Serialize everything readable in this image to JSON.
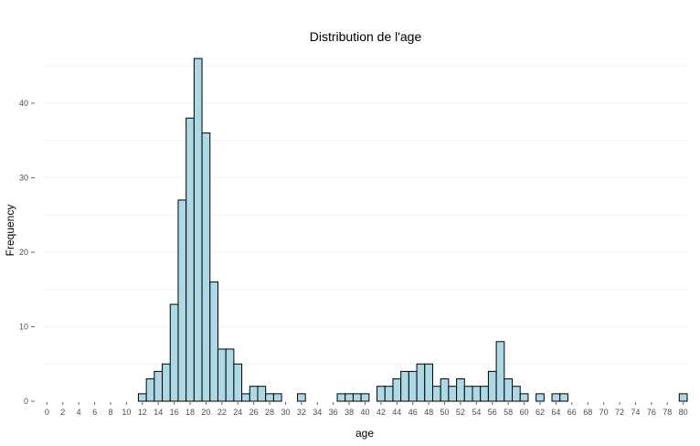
{
  "chart_data": {
    "type": "bar",
    "title": "Distribution de l'age",
    "xlabel": "age",
    "ylabel": "Frequency",
    "xlim": [
      0,
      80
    ],
    "ylim": [
      0,
      46
    ],
    "x_ticks": [
      0,
      2,
      4,
      6,
      8,
      10,
      12,
      14,
      16,
      18,
      20,
      22,
      24,
      26,
      28,
      30,
      32,
      34,
      36,
      38,
      40,
      42,
      44,
      46,
      48,
      50,
      52,
      54,
      56,
      58,
      60,
      62,
      64,
      66,
      68,
      70,
      72,
      74,
      76,
      78,
      80
    ],
    "y_ticks": [
      0,
      10,
      20,
      30,
      40
    ],
    "grid": true,
    "x": [
      12,
      13,
      14,
      15,
      16,
      17,
      18,
      19,
      20,
      21,
      22,
      23,
      24,
      25,
      26,
      27,
      28,
      29,
      32,
      37,
      38,
      39,
      40,
      42,
      43,
      44,
      45,
      46,
      47,
      48,
      49,
      50,
      51,
      52,
      53,
      54,
      55,
      56,
      57,
      58,
      59,
      60,
      62,
      64,
      65,
      80
    ],
    "values": [
      1,
      3,
      4,
      5,
      13,
      27,
      38,
      46,
      36,
      16,
      7,
      7,
      5,
      1,
      2,
      2,
      1,
      1,
      1,
      1,
      1,
      1,
      1,
      2,
      2,
      3,
      4,
      4,
      5,
      5,
      2,
      3,
      2,
      3,
      2,
      2,
      2,
      4,
      8,
      3,
      2,
      1,
      1,
      1,
      1,
      1
    ]
  }
}
